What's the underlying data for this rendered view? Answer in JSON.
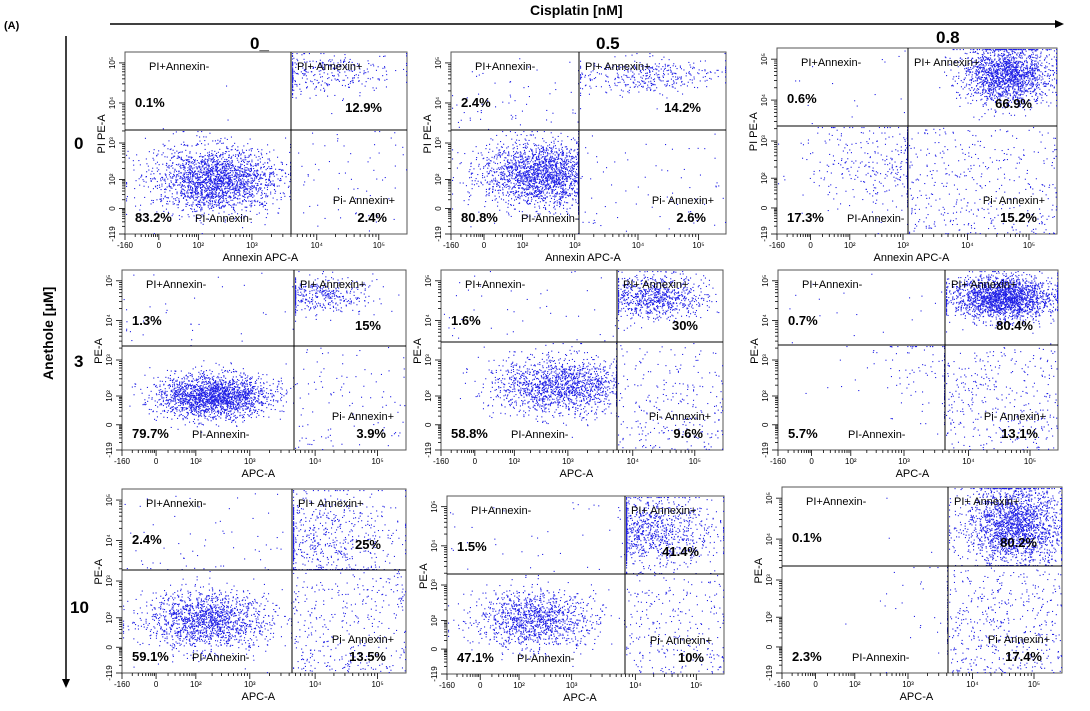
{
  "figure_label": "(A)",
  "x_factor_title": "Cisplatin [nM]",
  "y_factor_title": "Anethole [μM]",
  "column_labels": [
    "0_",
    "0.5",
    "0.8"
  ],
  "row_labels": [
    "0",
    "3",
    "10"
  ],
  "colors": {
    "dots": "#1f1fe6",
    "lines": "#000000",
    "frame": "#555555"
  },
  "quadrant_names": {
    "ul": "PI+Annexin-",
    "ur": "PI+ Annexin+",
    "ll": "PI-Annexin-",
    "lr": "Pi- Annexin+"
  },
  "chart_data": [
    {
      "type": "scatter",
      "row": "0",
      "column": "0_",
      "xlabel": "Annexin APC-A",
      "ylabel": "PI PE-A",
      "quadrants": {
        "ul": "0.1%",
        "ur": "12.9%",
        "ll": "83.2%",
        "lr": "2.4%"
      },
      "xticks": [
        "-160",
        "0",
        "10²",
        "10³",
        "10⁴",
        "10⁵"
      ],
      "yticks": [
        "-119",
        "0",
        "10²",
        "10³",
        "10⁴",
        "10⁵"
      ]
    },
    {
      "type": "scatter",
      "row": "0",
      "column": "0.5",
      "xlabel": "Annexin APC-A",
      "ylabel": "PI PE-A",
      "quadrants": {
        "ul": "2.4%",
        "ur": "14.2%",
        "ll": "80.8%",
        "lr": "2.6%"
      },
      "xticks": [
        "-160",
        "0",
        "10²",
        "10³",
        "10⁴",
        "10⁵"
      ],
      "yticks": [
        "-119",
        "0",
        "10²",
        "10³",
        "10⁴",
        "10⁵"
      ]
    },
    {
      "type": "scatter",
      "row": "0",
      "column": "0.8",
      "xlabel": "Annexin APC-A",
      "ylabel": "PI PE-A",
      "quadrants": {
        "ul": "0.6%",
        "ur": "66.9%",
        "ll": "17.3%",
        "lr": "15.2%"
      },
      "xticks": [
        "-160",
        "0",
        "10²",
        "10³",
        "10⁴",
        "10⁵"
      ],
      "yticks": [
        "-119",
        "0",
        "10²",
        "10³",
        "10⁴",
        "10⁵"
      ]
    },
    {
      "type": "scatter",
      "row": "3",
      "column": "0_",
      "xlabel": "APC-A",
      "ylabel": "PE-A",
      "quadrants": {
        "ul": "1.3%",
        "ur": "15%",
        "ll": "79.7%",
        "lr": "3.9%"
      },
      "xticks": [
        "-160",
        "0",
        "10²",
        "10³",
        "10⁴",
        "10⁵"
      ],
      "yticks": [
        "-119",
        "0",
        "10²",
        "10³",
        "10⁴",
        "10⁵"
      ]
    },
    {
      "type": "scatter",
      "row": "3",
      "column": "0.5",
      "xlabel": "APC-A",
      "ylabel": "PE-A",
      "quadrants": {
        "ul": "1.6%",
        "ur": "30%",
        "ll": "58.8%",
        "lr": "9.6%"
      },
      "xticks": [
        "-160",
        "0",
        "10²",
        "10³",
        "10⁴",
        "10⁵"
      ],
      "yticks": [
        "-119",
        "0",
        "10²",
        "10³",
        "10⁴",
        "10⁵"
      ]
    },
    {
      "type": "scatter",
      "row": "3",
      "column": "0.8",
      "xlabel": "APC-A",
      "ylabel": "PE-A",
      "quadrants": {
        "ul": "0.7%",
        "ur": "80.4%",
        "ll": "5.7%",
        "lr": "13.1%"
      },
      "xticks": [
        "-160",
        "0",
        "10²",
        "10³",
        "10⁴",
        "10⁵"
      ],
      "yticks": [
        "-119",
        "0",
        "10²",
        "10³",
        "10⁴",
        "10⁵"
      ]
    },
    {
      "type": "scatter",
      "row": "10",
      "column": "0_",
      "xlabel": "APC-A",
      "ylabel": "PE-A",
      "quadrants": {
        "ul": "2.4%",
        "ur": "25%",
        "ll": "59.1%",
        "lr": "13.5%"
      },
      "xticks": [
        "-160",
        "0",
        "10²",
        "10³",
        "10⁴",
        "10⁵"
      ],
      "yticks": [
        "-119",
        "0",
        "10²",
        "10³",
        "10⁴",
        "10⁵"
      ]
    },
    {
      "type": "scatter",
      "row": "10",
      "column": "0.5",
      "xlabel": "APC-A",
      "ylabel": "PE-A",
      "quadrants": {
        "ul": "1.5%",
        "ur": "41.4%",
        "ll": "47.1%",
        "lr": "10%"
      },
      "xticks": [
        "-160",
        "0",
        "10²",
        "10³",
        "10⁴",
        "10⁵"
      ],
      "yticks": [
        "-119",
        "0",
        "10²",
        "10³",
        "10⁴",
        "10⁵"
      ]
    },
    {
      "type": "scatter",
      "row": "10",
      "column": "0.8",
      "xlabel": "APC-A",
      "ylabel": "PE-A",
      "quadrants": {
        "ul": "0.1%",
        "ur": "80.2%",
        "ll": "2.3%",
        "lr": "17.4%"
      },
      "xticks": [
        "-160",
        "0",
        "10²",
        "10³",
        "10⁴",
        "10⁵"
      ],
      "yticks": [
        "-119",
        "0",
        "10²",
        "10³",
        "10⁴",
        "10⁵"
      ]
    }
  ]
}
